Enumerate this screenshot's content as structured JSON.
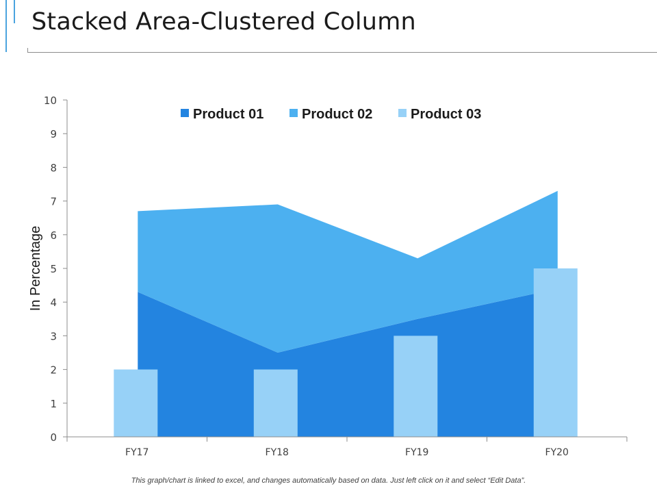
{
  "page": {
    "title": "Stacked Area-Clustered Column",
    "footer_note": "This graph/chart is linked to excel, and changes automatically  based on data.  Just left click on it and select “Edit Data”."
  },
  "colors": {
    "accent": "#4aa3df",
    "product_01": "#2384e0",
    "product_02": "#4cb0f0",
    "product_03": "#97d1f7",
    "axis": "#8c8c8c",
    "text": "#404040"
  },
  "chart_data": {
    "type": "area",
    "combo": "stacked area + clustered column",
    "categories": [
      "FY17",
      "FY18",
      "FY19",
      "FY20"
    ],
    "series": [
      {
        "name": "Product 01",
        "type": "stacked-area",
        "values": [
          4.3,
          2.5,
          3.5,
          4.4
        ]
      },
      {
        "name": "Product 02",
        "type": "stacked-area",
        "values": [
          2.4,
          4.4,
          1.8,
          2.9
        ]
      },
      {
        "name": "Product 03",
        "type": "column",
        "values": [
          2,
          2,
          3,
          5
        ]
      }
    ],
    "ylabel": "In Percentage",
    "ylim": [
      0,
      10
    ],
    "yticks": [
      0,
      1,
      2,
      3,
      4,
      5,
      6,
      7,
      8,
      9,
      10
    ],
    "grid": false,
    "legend": "top-center"
  }
}
